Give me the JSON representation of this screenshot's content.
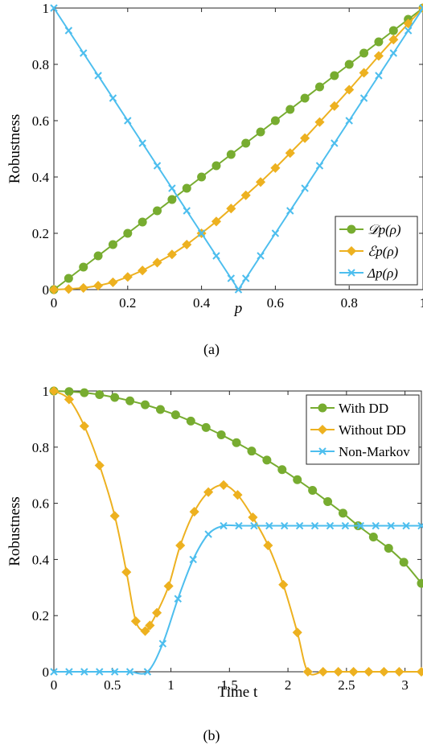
{
  "colors": {
    "green": "#77AC30",
    "orange": "#EDB120",
    "blue": "#4DBEEE"
  },
  "chart_data": [
    {
      "caption": "(a)",
      "type": "line",
      "xlabel": "p",
      "ylabel": "Robustness",
      "xlim": [
        0,
        1
      ],
      "ylim": [
        0,
        1
      ],
      "xticks": [
        "0",
        "0.2",
        "0.4",
        "0.6",
        "0.8",
        "1"
      ],
      "yticks": [
        "0",
        "0.2",
        "0.4",
        "0.6",
        "0.8",
        "1"
      ],
      "legend_position": "bottom-right",
      "series": [
        {
          "name": "𝒟p(ρ)",
          "color": "#77AC30",
          "marker": "circle",
          "x": [
            0,
            0.04,
            0.08,
            0.12,
            0.16,
            0.2,
            0.24,
            0.28,
            0.32,
            0.36,
            0.4,
            0.44,
            0.48,
            0.52,
            0.56,
            0.6,
            0.64,
            0.68,
            0.72,
            0.76,
            0.8,
            0.84,
            0.88,
            0.92,
            0.96,
            1.0
          ],
          "y": [
            0,
            0.04,
            0.08,
            0.12,
            0.16,
            0.2,
            0.24,
            0.28,
            0.32,
            0.36,
            0.4,
            0.44,
            0.48,
            0.52,
            0.56,
            0.6,
            0.64,
            0.68,
            0.72,
            0.76,
            0.8,
            0.84,
            0.88,
            0.92,
            0.96,
            1.0
          ]
        },
        {
          "name": "ℰp(ρ)",
          "color": "#EDB120",
          "marker": "diamond",
          "x": [
            0,
            0.04,
            0.08,
            0.12,
            0.16,
            0.2,
            0.24,
            0.28,
            0.32,
            0.36,
            0.4,
            0.44,
            0.48,
            0.52,
            0.56,
            0.6,
            0.64,
            0.68,
            0.72,
            0.76,
            0.8,
            0.84,
            0.88,
            0.92,
            0.96,
            1.0
          ],
          "y": [
            0,
            0.002,
            0.006,
            0.014,
            0.026,
            0.045,
            0.068,
            0.096,
            0.125,
            0.16,
            0.2,
            0.242,
            0.288,
            0.335,
            0.382,
            0.432,
            0.485,
            0.538,
            0.595,
            0.652,
            0.71,
            0.77,
            0.83,
            0.888,
            0.945,
            1.0
          ]
        },
        {
          "name": "Δp(ρ)",
          "color": "#4DBEEE",
          "marker": "x",
          "x": [
            0,
            0.04,
            0.08,
            0.12,
            0.16,
            0.2,
            0.24,
            0.28,
            0.32,
            0.36,
            0.4,
            0.44,
            0.48,
            0.5,
            0.52,
            0.56,
            0.6,
            0.64,
            0.68,
            0.72,
            0.76,
            0.8,
            0.84,
            0.88,
            0.92,
            0.96,
            1.0
          ],
          "y": [
            1.0,
            0.92,
            0.84,
            0.76,
            0.68,
            0.6,
            0.52,
            0.44,
            0.36,
            0.28,
            0.2,
            0.12,
            0.04,
            0.0,
            0.04,
            0.12,
            0.2,
            0.28,
            0.36,
            0.44,
            0.52,
            0.6,
            0.68,
            0.76,
            0.84,
            0.92,
            1.0
          ]
        }
      ]
    },
    {
      "caption": "(b)",
      "type": "line",
      "xlabel": "Time t",
      "ylabel": "Robustness",
      "xlim": [
        0,
        3.14
      ],
      "ylim": [
        0,
        1
      ],
      "xticks": [
        "0",
        "0.5",
        "1",
        "1.5",
        "2",
        "2.5",
        "3"
      ],
      "yticks": [
        "0",
        "0.2",
        "0.4",
        "0.6",
        "0.8",
        "1"
      ],
      "legend_position": "top-right",
      "series": [
        {
          "name": "With DD",
          "color": "#77AC30",
          "marker": "circle",
          "x": [
            0,
            0.13,
            0.26,
            0.39,
            0.52,
            0.65,
            0.78,
            0.91,
            1.04,
            1.17,
            1.3,
            1.43,
            1.56,
            1.69,
            1.82,
            1.95,
            2.08,
            2.21,
            2.34,
            2.47,
            2.6,
            2.73,
            2.86,
            2.99,
            3.14
          ],
          "y": [
            1.0,
            0.998,
            0.994,
            0.987,
            0.977,
            0.965,
            0.951,
            0.934,
            0.915,
            0.893,
            0.87,
            0.844,
            0.816,
            0.786,
            0.754,
            0.72,
            0.684,
            0.646,
            0.606,
            0.565,
            0.52,
            0.48,
            0.44,
            0.39,
            0.315
          ]
        },
        {
          "name": "Without DD",
          "color": "#EDB120",
          "marker": "diamond",
          "x": [
            0,
            0.13,
            0.26,
            0.39,
            0.52,
            0.62,
            0.7,
            0.78,
            0.82,
            0.88,
            0.98,
            1.08,
            1.2,
            1.32,
            1.45,
            1.57,
            1.7,
            1.83,
            1.96,
            2.08,
            2.17,
            2.3,
            2.43,
            2.56,
            2.69,
            2.82,
            2.95,
            3.14
          ],
          "y": [
            1.0,
            0.97,
            0.875,
            0.735,
            0.555,
            0.355,
            0.18,
            0.145,
            0.165,
            0.21,
            0.305,
            0.45,
            0.57,
            0.64,
            0.665,
            0.63,
            0.55,
            0.45,
            0.31,
            0.14,
            0.0,
            0.0,
            0.0,
            0.0,
            0.0,
            0.0,
            0.0,
            0.0
          ]
        },
        {
          "name": "Non-Markov",
          "color": "#4DBEEE",
          "marker": "x",
          "x": [
            0,
            0.13,
            0.26,
            0.39,
            0.52,
            0.65,
            0.8,
            0.93,
            1.06,
            1.19,
            1.32,
            1.45,
            1.58,
            1.71,
            1.84,
            1.97,
            2.1,
            2.23,
            2.36,
            2.49,
            2.62,
            2.75,
            2.88,
            3.01,
            3.14
          ],
          "y": [
            0,
            0,
            0,
            0,
            0,
            0,
            0,
            0.1,
            0.26,
            0.4,
            0.49,
            0.52,
            0.52,
            0.52,
            0.52,
            0.52,
            0.52,
            0.52,
            0.52,
            0.52,
            0.52,
            0.52,
            0.52,
            0.52,
            0.52
          ]
        }
      ]
    }
  ]
}
